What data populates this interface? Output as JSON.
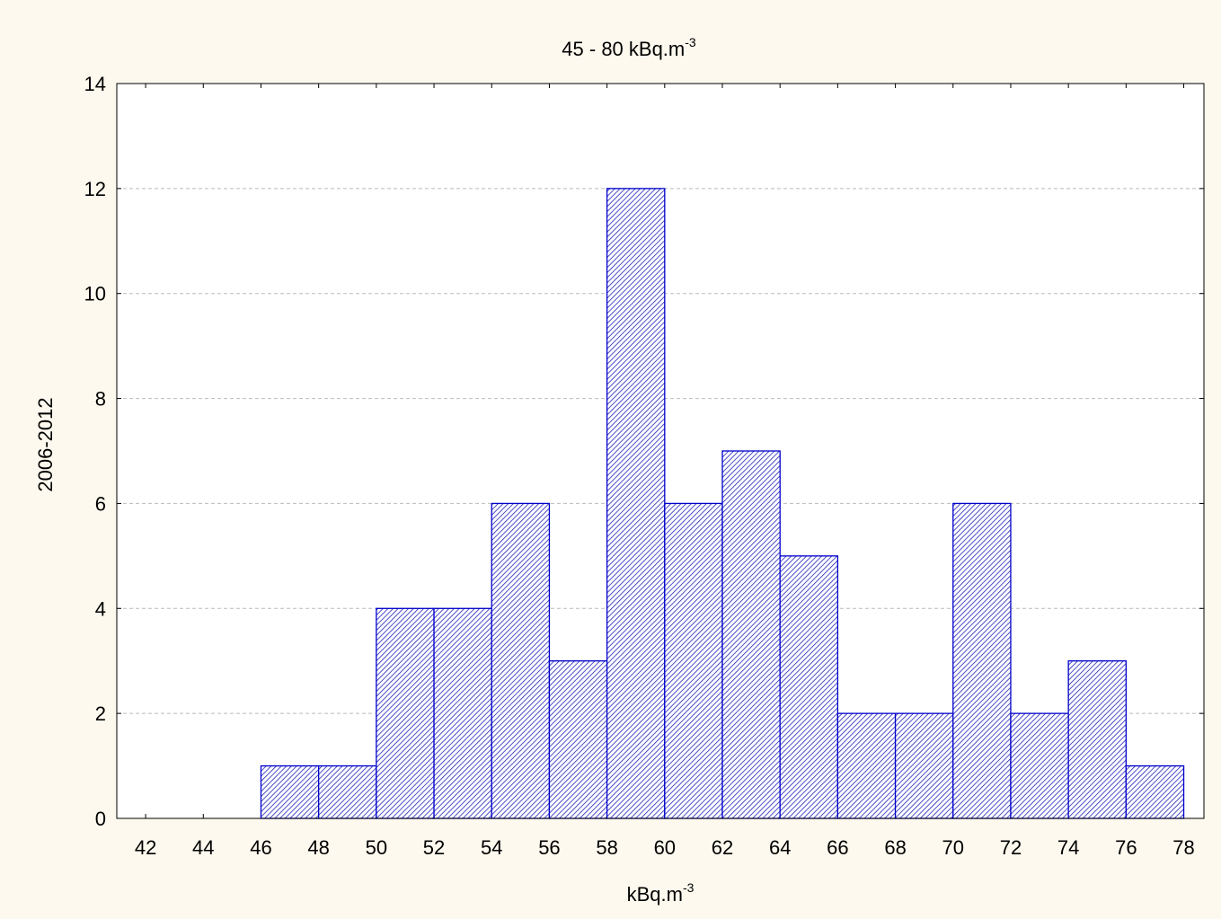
{
  "chart_data": {
    "type": "histogram",
    "title": {
      "text": "45 - 80 kBq.m",
      "superscript": "-3"
    },
    "x_label": {
      "text": "kBq.m",
      "superscript": "-3"
    },
    "y_label": "2006-2012",
    "bins": [
      42,
      44,
      46,
      48,
      50,
      52,
      54,
      56,
      58,
      60,
      62,
      64,
      66,
      68,
      70,
      72,
      74,
      76,
      78
    ],
    "values": [
      0,
      0,
      1,
      1,
      4,
      4,
      6,
      3,
      12,
      6,
      7,
      5,
      2,
      2,
      6,
      2,
      3,
      1
    ],
    "color": "#0000cc",
    "xlim": [
      41,
      78.7
    ],
    "xticks": [
      42,
      44,
      46,
      48,
      50,
      52,
      54,
      56,
      58,
      60,
      62,
      64,
      66,
      68,
      70,
      72,
      74,
      76,
      78
    ],
    "ylim": [
      0,
      14
    ],
    "yticks": [
      0,
      2,
      4,
      6,
      8,
      10,
      12,
      14
    ],
    "grid": true
  }
}
